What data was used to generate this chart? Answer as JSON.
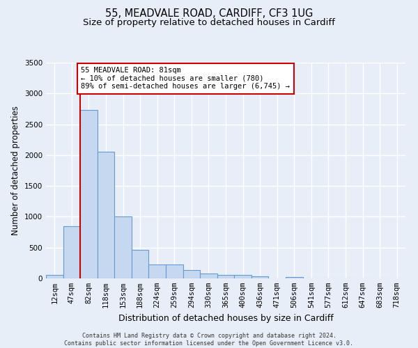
{
  "title_line1": "55, MEADVALE ROAD, CARDIFF, CF3 1UG",
  "title_line2": "Size of property relative to detached houses in Cardiff",
  "xlabel": "Distribution of detached houses by size in Cardiff",
  "ylabel": "Number of detached properties",
  "categories": [
    "12sqm",
    "47sqm",
    "82sqm",
    "118sqm",
    "153sqm",
    "188sqm",
    "224sqm",
    "259sqm",
    "294sqm",
    "330sqm",
    "365sqm",
    "400sqm",
    "436sqm",
    "471sqm",
    "506sqm",
    "541sqm",
    "577sqm",
    "612sqm",
    "647sqm",
    "683sqm",
    "718sqm"
  ],
  "values": [
    60,
    850,
    2730,
    2060,
    1010,
    460,
    230,
    230,
    140,
    75,
    60,
    55,
    30,
    5,
    20,
    5,
    5,
    5,
    5,
    5,
    5
  ],
  "bar_color": "#c5d8f0",
  "bar_edgecolor": "#6699cc",
  "ylim": [
    0,
    3500
  ],
  "yticks": [
    0,
    500,
    1000,
    1500,
    2000,
    2500,
    3000,
    3500
  ],
  "red_line_bar_index": 2,
  "annotation_text": "55 MEADVALE ROAD: 81sqm\n← 10% of detached houses are smaller (780)\n89% of semi-detached houses are larger (6,745) →",
  "annotation_box_color": "#ffffff",
  "annotation_box_edgecolor": "#cc0000",
  "footer_line1": "Contains HM Land Registry data © Crown copyright and database right 2024.",
  "footer_line2": "Contains public sector information licensed under the Open Government Licence v3.0.",
  "background_color": "#e8eef8",
  "plot_background": "#e8eef8",
  "grid_color": "#d0d8e8",
  "title_fontsize": 10.5,
  "subtitle_fontsize": 9.5,
  "tick_fontsize": 7.5,
  "ylabel_fontsize": 8.5,
  "xlabel_fontsize": 9
}
